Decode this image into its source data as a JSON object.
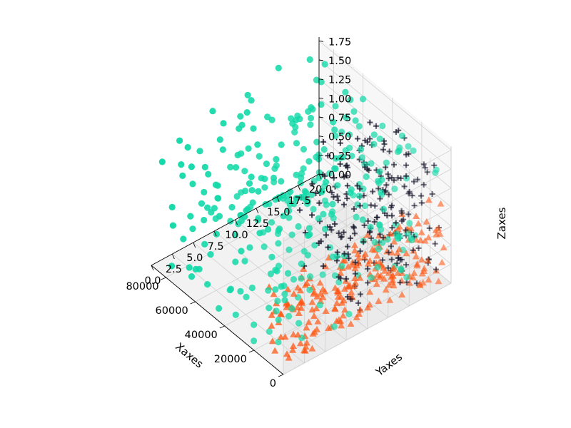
{
  "chart_data": {
    "type": "scatter",
    "projection": "3d",
    "title": "",
    "xlabel": "Xaxes",
    "ylabel": "Yaxes",
    "zlabel": "Zaxes",
    "xlim": [
      0,
      90000
    ],
    "ylim": [
      0,
      20
    ],
    "zlim": [
      0,
      1.8
    ],
    "x_ticks": [
      "0",
      "20000",
      "40000",
      "60000",
      "80000"
    ],
    "y_ticks": [
      "0.0",
      "2.5",
      "5.0",
      "7.5",
      "10.0",
      "12.5",
      "15.0",
      "17.5",
      "20.0"
    ],
    "z_ticks": [
      "0.00",
      "0.25",
      "0.50",
      "0.75",
      "1.00",
      "1.25",
      "1.50",
      "1.75"
    ],
    "grid": true,
    "series": [
      {
        "marker": "triangle",
        "color": "#FF5511",
        "count": 220,
        "x_range": [
          0,
          12000
        ],
        "y_range": [
          0,
          20
        ],
        "z_range": [
          0,
          1.0
        ]
      },
      {
        "marker": "plus",
        "color": "#1a1a2e",
        "count": 200,
        "x_range": [
          0,
          45000
        ],
        "y_range": [
          9,
          20
        ],
        "z_range": [
          0.2,
          1.7
        ]
      },
      {
        "marker": "circle",
        "color": "#11D9A8",
        "count": 320,
        "x_range": [
          5000,
          90000
        ],
        "y_range": [
          0,
          20
        ],
        "z_range": [
          0,
          1.8
        ]
      }
    ]
  }
}
